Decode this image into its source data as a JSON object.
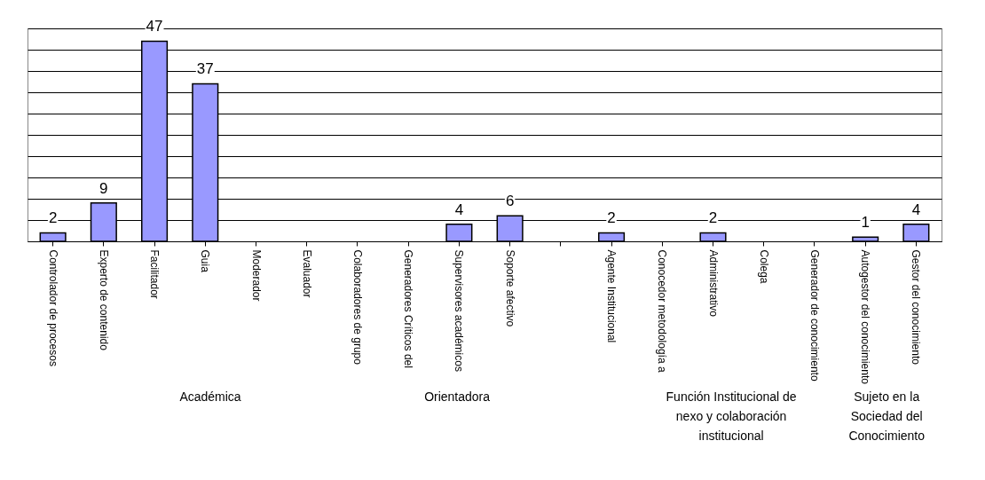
{
  "chart_data": {
    "type": "bar",
    "categories": [
      "Controlador de procesos",
      "Experto de contenido",
      "Facilitador",
      "Guia",
      "Moderador",
      "Evaluador",
      "Colaboradores de grupo",
      "Generadores Críticos del",
      "Supervisores académicos",
      "Soporte afectivo",
      null,
      "Agente Institucional",
      "Conocedor metodología a",
      "Administrativo",
      "Colega",
      "Generador de conocimiento",
      "Autogestor del conocimiento",
      "Gestor del conocimiento"
    ],
    "values": [
      2,
      9,
      47,
      37,
      null,
      null,
      null,
      null,
      4,
      6,
      null,
      2,
      null,
      2,
      null,
      null,
      1,
      4
    ],
    "color": "#9999ff",
    "data_labels": true,
    "ylim": [
      0,
      50
    ],
    "yticks": [
      {
        "value": 0,
        "label": null
      },
      {
        "value": 5,
        "label": null
      },
      {
        "value": 10,
        "label": null
      },
      {
        "value": 15,
        "label": null
      },
      {
        "value": 20,
        "label": null
      },
      {
        "value": 25,
        "label": null
      },
      {
        "value": 30,
        "label": null
      },
      {
        "value": 35,
        "label": null
      },
      {
        "value": 40,
        "label": null
      },
      {
        "value": 45,
        "label": null
      },
      {
        "value": 50,
        "label": null
      }
    ],
    "grid": "y",
    "tick_labels": "x",
    "annotations": [
      "Académica",
      "Orientadora",
      "Función Institucional de nexo y colaboración institucional",
      "Sujeto en la Sociedad del Conocimiento"
    ]
  }
}
